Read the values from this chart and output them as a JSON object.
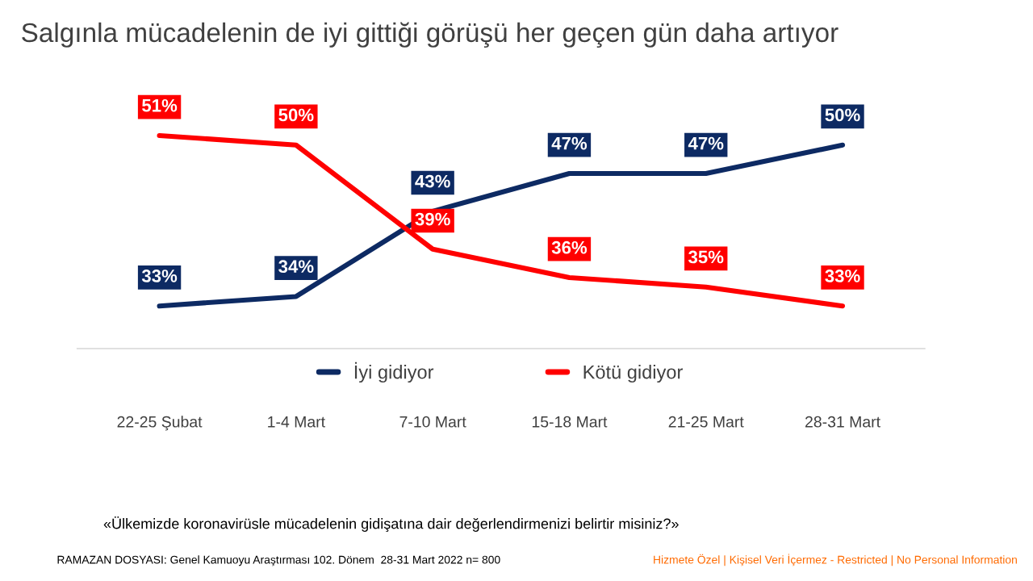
{
  "chart_data": {
    "type": "line",
    "title": "Salgınla mücadelenin de iyi gittiği görüşü her geçen gün daha artıyor",
    "categories": [
      "22-25 Şubat",
      "1-4 Mart",
      "7-10 Mart",
      "15-18 Mart",
      "21-25 Mart",
      "28-31 Mart"
    ],
    "series": [
      {
        "name": "İyi gidiyor",
        "color": "#0d2a63",
        "values": [
          33,
          34,
          43,
          47,
          47,
          50
        ],
        "value_labels": [
          "33%",
          "34%",
          "43%",
          "47%",
          "47%",
          "50%"
        ]
      },
      {
        "name": "Kötü gidiyor",
        "color": "#ff0000",
        "values": [
          51,
          50,
          39,
          36,
          35,
          33
        ],
        "value_labels": [
          "51%",
          "50%",
          "39%",
          "36%",
          "35%",
          "33%"
        ]
      }
    ],
    "legend": "bottom",
    "tick_labels": "x",
    "marker": "none",
    "line_style": "solid",
    "annotations": [
      "«Ülkemizde koronavirüsle mücadelenin gidişatına dair değerlendirmenizi belirtir misiniz?»",
      "RAMAZAN DOSYASI: Genel Kamuoyu Araştırması 102. Dönem  28-31 Mart 2022 n= 800",
      "Hizmete Özel | Kişisel Veri İçermez - Restricted | No Personal Information"
    ]
  }
}
